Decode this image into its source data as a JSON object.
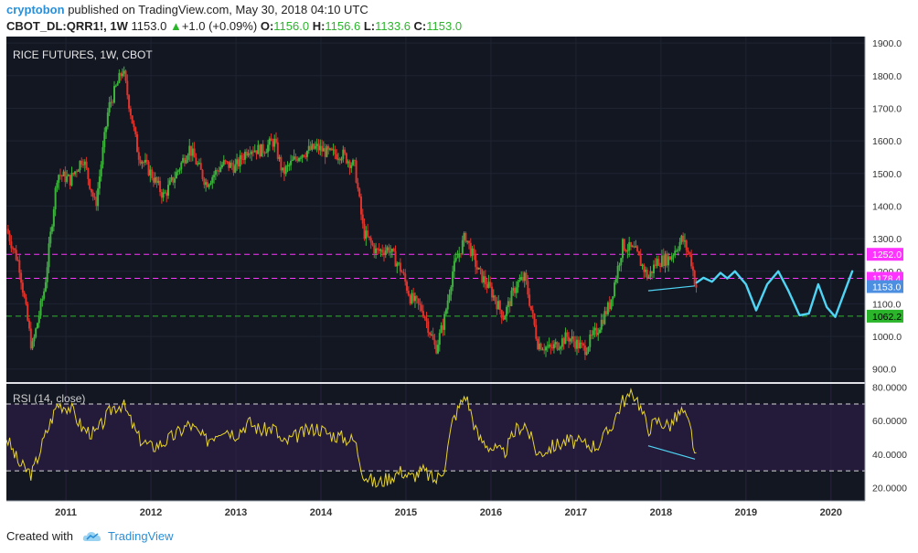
{
  "header": {
    "author": "cryptobon",
    "published_text": "published on TradingView.com, May 30, 2018 04:10 UTC",
    "symbol": "CBOT_DL:QRR1!, 1W",
    "last": "1153.0",
    "change_arrow": "▲",
    "change": "+1.0 (+0.09%)",
    "o_label": "O:",
    "o_value": "1156.0",
    "h_label": "H:",
    "h_value": "1156.6",
    "l_label": "L:",
    "l_value": "1133.6",
    "c_label": "C:",
    "c_value": "1153.0"
  },
  "footer": {
    "created_with": "Created with",
    "brand": "TradingView"
  },
  "colors": {
    "background": "#131722",
    "rsi_band": "#241a3a",
    "up_candle": "#3cb43c",
    "down_candle": "#e0332c",
    "rsi_line": "#e8d52c",
    "projection": "#4fd4f4",
    "magenta_level": "#ff33ff",
    "green_level": "#2bb52b",
    "price_tag_blue": "#4c8fe0"
  },
  "chart_data": [
    {
      "type": "candlestick",
      "title": "RICE FUTURES, 1W, CBOT",
      "ylim": [
        860,
        1920
      ],
      "y_ticks": [
        "900.0",
        "1000.0",
        "1100.0",
        "1200.0",
        "1300.0",
        "1400.0",
        "1500.0",
        "1600.0",
        "1700.0",
        "1800.0",
        "1900.0"
      ],
      "x_ticks": [
        "2011",
        "2012",
        "2013",
        "2014",
        "2015",
        "2016",
        "2017",
        "2018",
        "2019",
        "2020"
      ],
      "x_range": [
        2010.3,
        2020.4
      ],
      "levels": [
        {
          "label": "1252.0",
          "value": 1252,
          "color": "#ff33ff",
          "style": "dashed"
        },
        {
          "label": "1178.4",
          "value": 1178.4,
          "color": "#ff33ff",
          "style": "dashed"
        },
        {
          "label": "1153.0",
          "value": 1153,
          "color": "#4c8fe0",
          "style": "tag"
        },
        {
          "label": "1062.2",
          "value": 1062.2,
          "color": "#2bb52b",
          "style": "dashed"
        }
      ],
      "anchors": [
        [
          2010.3,
          1330
        ],
        [
          2010.45,
          1220
        ],
        [
          2010.6,
          960
        ],
        [
          2010.75,
          1150
        ],
        [
          2010.9,
          1500
        ],
        [
          2011.05,
          1480
        ],
        [
          2011.2,
          1550
        ],
        [
          2011.35,
          1400
        ],
        [
          2011.5,
          1700
        ],
        [
          2011.67,
          1820
        ],
        [
          2011.85,
          1560
        ],
        [
          2012.0,
          1500
        ],
        [
          2012.15,
          1430
        ],
        [
          2012.3,
          1500
        ],
        [
          2012.45,
          1580
        ],
        [
          2012.65,
          1470
        ],
        [
          2012.85,
          1530
        ],
        [
          2013.0,
          1520
        ],
        [
          2013.15,
          1580
        ],
        [
          2013.3,
          1570
        ],
        [
          2013.45,
          1600
        ],
        [
          2013.55,
          1500
        ],
        [
          2013.75,
          1560
        ],
        [
          2013.95,
          1580
        ],
        [
          2014.1,
          1560
        ],
        [
          2014.25,
          1560
        ],
        [
          2014.4,
          1520
        ],
        [
          2014.5,
          1320
        ],
        [
          2014.65,
          1260
        ],
        [
          2014.8,
          1270
        ],
        [
          2014.95,
          1200
        ],
        [
          2015.05,
          1120
        ],
        [
          2015.2,
          1080
        ],
        [
          2015.35,
          960
        ],
        [
          2015.45,
          1050
        ],
        [
          2015.55,
          1200
        ],
        [
          2015.7,
          1310
        ],
        [
          2015.85,
          1200
        ],
        [
          2016.0,
          1140
        ],
        [
          2016.15,
          1060
        ],
        [
          2016.3,
          1160
        ],
        [
          2016.4,
          1180
        ],
        [
          2016.55,
          980
        ],
        [
          2016.7,
          960
        ],
        [
          2016.9,
          1000
        ],
        [
          2017.1,
          960
        ],
        [
          2017.25,
          1020
        ],
        [
          2017.4,
          1100
        ],
        [
          2017.55,
          1280
        ],
        [
          2017.7,
          1260
        ],
        [
          2017.85,
          1180
        ],
        [
          2017.95,
          1230
        ],
        [
          2018.1,
          1240
        ],
        [
          2018.25,
          1300
        ],
        [
          2018.35,
          1240
        ],
        [
          2018.41,
          1153
        ]
      ],
      "trendline": {
        "from": [
          2017.85,
          1140
        ],
        "to": [
          2018.4,
          1155
        ]
      },
      "projection": [
        [
          2018.42,
          1165
        ],
        [
          2018.5,
          1180
        ],
        [
          2018.6,
          1168
        ],
        [
          2018.7,
          1195
        ],
        [
          2018.78,
          1178
        ],
        [
          2018.87,
          1200
        ],
        [
          2019.0,
          1160
        ],
        [
          2019.12,
          1080
        ],
        [
          2019.25,
          1160
        ],
        [
          2019.38,
          1200
        ],
        [
          2019.5,
          1140
        ],
        [
          2019.63,
          1065
        ],
        [
          2019.74,
          1070
        ],
        [
          2019.85,
          1160
        ],
        [
          2019.95,
          1090
        ],
        [
          2020.05,
          1060
        ],
        [
          2020.15,
          1130
        ],
        [
          2020.25,
          1200
        ]
      ]
    },
    {
      "type": "line",
      "title": "RSI (14, close)",
      "ylim": [
        12,
        82
      ],
      "y_ticks": [
        "20.0000",
        "40.0000",
        "60.0000",
        "80.0000"
      ],
      "bands": [
        30,
        70
      ],
      "anchors": [
        [
          2010.3,
          50
        ],
        [
          2010.45,
          34
        ],
        [
          2010.6,
          28
        ],
        [
          2010.75,
          50
        ],
        [
          2010.9,
          70
        ],
        [
          2011.05,
          68
        ],
        [
          2011.2,
          55
        ],
        [
          2011.35,
          52
        ],
        [
          2011.55,
          68
        ],
        [
          2011.67,
          70
        ],
        [
          2011.85,
          50
        ],
        [
          2012.0,
          44
        ],
        [
          2012.15,
          47
        ],
        [
          2012.3,
          52
        ],
        [
          2012.45,
          58
        ],
        [
          2012.65,
          48
        ],
        [
          2012.85,
          56
        ],
        [
          2013.0,
          52
        ],
        [
          2013.15,
          59
        ],
        [
          2013.3,
          54
        ],
        [
          2013.45,
          56
        ],
        [
          2013.55,
          46
        ],
        [
          2013.75,
          52
        ],
        [
          2013.95,
          56
        ],
        [
          2014.1,
          52
        ],
        [
          2014.25,
          50
        ],
        [
          2014.4,
          48
        ],
        [
          2014.5,
          28
        ],
        [
          2014.65,
          22
        ],
        [
          2014.8,
          26
        ],
        [
          2014.95,
          30
        ],
        [
          2015.05,
          26
        ],
        [
          2015.2,
          30
        ],
        [
          2015.35,
          24
        ],
        [
          2015.45,
          32
        ],
        [
          2015.55,
          60
        ],
        [
          2015.7,
          76
        ],
        [
          2015.85,
          50
        ],
        [
          2016.0,
          44
        ],
        [
          2016.15,
          40
        ],
        [
          2016.3,
          55
        ],
        [
          2016.4,
          58
        ],
        [
          2016.55,
          40
        ],
        [
          2016.7,
          44
        ],
        [
          2016.9,
          48
        ],
        [
          2017.1,
          46
        ],
        [
          2017.25,
          45
        ],
        [
          2017.4,
          55
        ],
        [
          2017.55,
          72
        ],
        [
          2017.7,
          76
        ],
        [
          2017.85,
          55
        ],
        [
          2017.95,
          60
        ],
        [
          2018.1,
          57
        ],
        [
          2018.25,
          66
        ],
        [
          2018.35,
          55
        ],
        [
          2018.41,
          37
        ]
      ],
      "trendline": {
        "from": [
          2017.85,
          45
        ],
        "to": [
          2018.4,
          37
        ]
      }
    }
  ]
}
